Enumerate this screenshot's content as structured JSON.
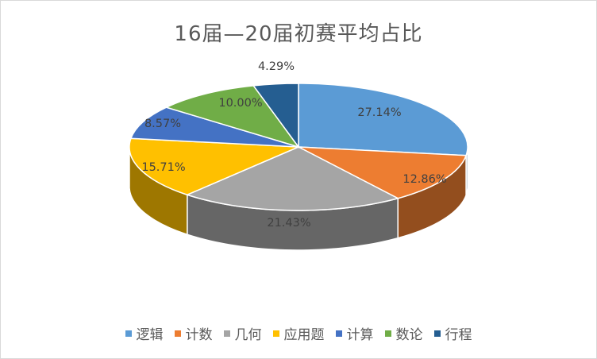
{
  "chart_data": {
    "type": "pie",
    "title": "16届—20届初赛平均占比",
    "categories": [
      "逻辑",
      "计数",
      "几何",
      "应用题",
      "计算",
      "数论",
      "行程"
    ],
    "values": [
      27.14,
      12.86,
      21.43,
      15.71,
      8.57,
      10.0,
      4.29
    ],
    "labels": [
      "27.14%",
      "12.86%",
      "21.43%",
      "15.71%",
      "8.57%",
      "10.00%",
      "4.29%"
    ],
    "colors": [
      "#5b9bd5",
      "#ed7d31",
      "#a5a5a5",
      "#ffc000",
      "#4472c4",
      "#70ad47",
      "#255e91"
    ],
    "legend_position": "bottom",
    "style": "3d"
  }
}
